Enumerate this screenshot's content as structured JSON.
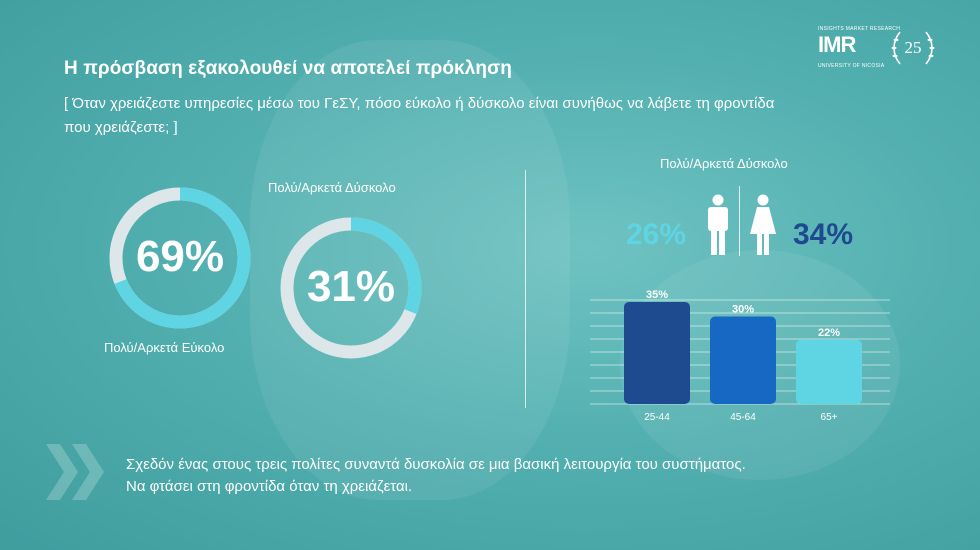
{
  "header": {
    "title": "Η πρόσβαση εξακολουθεί να αποτελεί πρόκληση",
    "question": "[ Όταν χρειάζεστε υπηρεσίες μέσω του ΓεΣΥ, πόσο εύκολο ή δύσκολο είναι συνήθως να λάβετε τη φροντίδα που χρειάζεστε; ]"
  },
  "logo": {
    "top_text": "INSIGHTS MARKET RESEARCH",
    "main_text": "IMR",
    "bottom_text": "UNIVERSITY OF NICOSIA",
    "anniversary": "25"
  },
  "colors": {
    "ring_track": "#dde7ea",
    "ring_fill": "#5fd4e2",
    "bar_dark": "#1e4b8f",
    "bar_mid": "#1668c2",
    "bar_light": "#5fd4e2"
  },
  "chart_data": [
    {
      "type": "pie",
      "label": "Πολύ/Αρκετά Εύκολο",
      "value": 69,
      "display": "69%"
    },
    {
      "type": "pie",
      "label": "Πολύ/Αρκετά Δύσκολο",
      "value": 31,
      "display": "31%"
    },
    {
      "type": "bar",
      "title": "Πολύ/Αρκετά Δύσκολο",
      "gender": {
        "male": "26%",
        "female": "34%"
      },
      "categories": [
        "25-44",
        "45-64",
        "65+"
      ],
      "values": [
        35,
        30,
        22
      ],
      "labels": [
        "35%",
        "30%",
        "22%"
      ],
      "ylim": [
        0,
        40
      ]
    }
  ],
  "footer": {
    "line1": "Σχεδόν ένας στους τρεις πολίτες συναντά δυσκολία σε μια βασική λειτουργία του συστήματος.",
    "line2": "Να φτάσει στη φροντίδα όταν τη χρειάζεται."
  }
}
